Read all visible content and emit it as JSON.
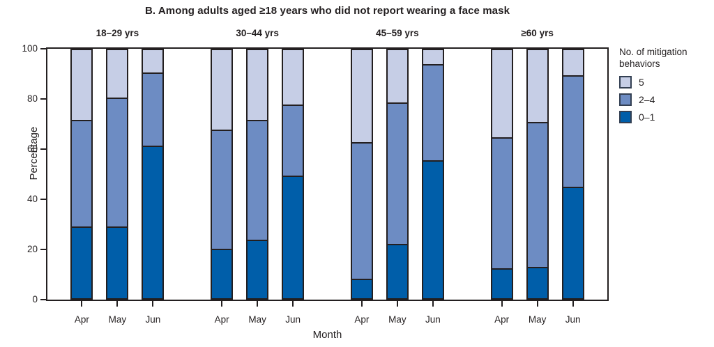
{
  "title": "B. Among adults aged ≥18 years who did not report wearing a face mask",
  "colors": {
    "axis": "#231f20",
    "segment_0_1": "#005ea9",
    "segment_2_4": "#6d8cc3",
    "segment_5": "#c6cee6",
    "legend_swatch_border": "#333f52"
  },
  "legend": {
    "title": "No. of mitigation behaviors"
  },
  "chart_data": {
    "type": "bar",
    "stacked": true,
    "title": "B. Among adults aged ≥18 years who did not report wearing a face mask",
    "xlabel": "Month",
    "ylabel": "Percentage",
    "ylim": [
      0,
      100
    ],
    "yticks": [
      0,
      20,
      40,
      60,
      80,
      100
    ],
    "grid": false,
    "legend_position": "right",
    "legend_title": "No. of mitigation behaviors",
    "legend_order": [
      "5",
      "2–4",
      "0–1"
    ],
    "categories": [
      "Apr",
      "May",
      "Jun"
    ],
    "series": [
      {
        "name": "0–1",
        "color": "#005ea9"
      },
      {
        "name": "2–4",
        "color": "#6d8cc3"
      },
      {
        "name": "5",
        "color": "#c6cee6"
      }
    ],
    "groups": [
      {
        "label": "18–29 yrs",
        "bars": [
          {
            "month": "Apr",
            "values": {
              "0–1": 29,
              "2–4": 43,
              "5": 28
            }
          },
          {
            "month": "May",
            "values": {
              "0–1": 29,
              "2–4": 52,
              "5": 19
            }
          },
          {
            "month": "Jun",
            "values": {
              "0–1": 61.5,
              "2–4": 29.5,
              "5": 9
            }
          }
        ]
      },
      {
        "label": "30–44 yrs",
        "bars": [
          {
            "month": "Apr",
            "values": {
              "0–1": 20,
              "2–4": 48,
              "5": 32
            }
          },
          {
            "month": "May",
            "values": {
              "0–1": 23.5,
              "2–4": 48.5,
              "5": 28
            }
          },
          {
            "month": "Jun",
            "values": {
              "0–1": 49.5,
              "2–4": 28.5,
              "5": 22
            }
          }
        ]
      },
      {
        "label": "45–59 yrs",
        "bars": [
          {
            "month": "Apr",
            "values": {
              "0–1": 8,
              "2–4": 55,
              "5": 37
            }
          },
          {
            "month": "May",
            "values": {
              "0–1": 22,
              "2–4": 57,
              "5": 21
            }
          },
          {
            "month": "Jun",
            "values": {
              "0–1": 55.5,
              "2–4": 39,
              "5": 5.5
            }
          }
        ]
      },
      {
        "label": "≥60 yrs",
        "bars": [
          {
            "month": "Apr",
            "values": {
              "0–1": 12,
              "2–4": 53,
              "5": 35
            }
          },
          {
            "month": "May",
            "values": {
              "0–1": 12.5,
              "2–4": 58.5,
              "5": 29
            }
          },
          {
            "month": "Jun",
            "values": {
              "0–1": 45,
              "2–4": 45,
              "5": 10
            }
          }
        ]
      }
    ]
  }
}
